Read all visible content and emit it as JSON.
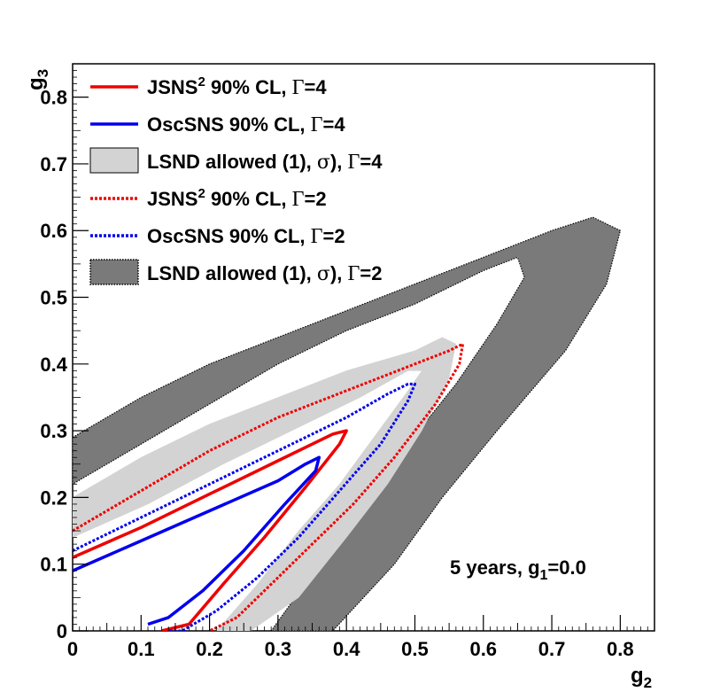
{
  "chart_data": {
    "type": "line",
    "title": "",
    "xlabel": "g",
    "xlabel_sub": "2",
    "ylabel": "g",
    "ylabel_sub": "3",
    "xlim": [
      0,
      0.85
    ],
    "ylim": [
      0,
      0.85
    ],
    "x_ticks": [
      {
        "v": 0,
        "label": "0"
      },
      {
        "v": 0.1,
        "label": "0.1"
      },
      {
        "v": 0.2,
        "label": "0.2"
      },
      {
        "v": 0.3,
        "label": "0.3"
      },
      {
        "v": 0.4,
        "label": "0.4"
      },
      {
        "v": 0.5,
        "label": "0.5"
      },
      {
        "v": 0.6,
        "label": "0.6"
      },
      {
        "v": 0.7,
        "label": "0.7"
      },
      {
        "v": 0.8,
        "label": "0.8"
      }
    ],
    "y_ticks": [
      {
        "v": 0,
        "label": "0"
      },
      {
        "v": 0.1,
        "label": "0.1"
      },
      {
        "v": 0.2,
        "label": "0.2"
      },
      {
        "v": 0.3,
        "label": "0.3"
      },
      {
        "v": 0.4,
        "label": "0.4"
      },
      {
        "v": 0.5,
        "label": "0.5"
      },
      {
        "v": 0.6,
        "label": "0.6"
      },
      {
        "v": 0.7,
        "label": "0.7"
      },
      {
        "v": 0.8,
        "label": "0.8"
      }
    ],
    "legend_position": "top-left",
    "annotation": {
      "text": "5 years, g",
      "sub": "1",
      "suffix": "=0.0"
    },
    "series": [
      {
        "id": "lsnd2",
        "name": "LSND allowed (1σ), Γ=2",
        "kind": "band",
        "color": "#7a7a7a",
        "style": "dotted-edge",
        "legend": {
          "pre": "LSND allowed (1",
          "greek": "σ",
          "post": "), ",
          "greek2": "Γ",
          "tail": "=2",
          "sup": ""
        },
        "outer": [
          [
            0,
            0.29
          ],
          [
            0.1,
            0.35
          ],
          [
            0.2,
            0.4
          ],
          [
            0.3,
            0.44
          ],
          [
            0.4,
            0.48
          ],
          [
            0.5,
            0.52
          ],
          [
            0.6,
            0.56
          ],
          [
            0.7,
            0.6
          ],
          [
            0.76,
            0.62
          ],
          [
            0.8,
            0.6
          ],
          [
            0.78,
            0.52
          ],
          [
            0.72,
            0.42
          ],
          [
            0.62,
            0.3
          ],
          [
            0.54,
            0.2
          ],
          [
            0.47,
            0.1
          ],
          [
            0.38,
            0
          ]
        ],
        "inner": [
          [
            0.29,
            0
          ],
          [
            0.36,
            0.1
          ],
          [
            0.42,
            0.19
          ],
          [
            0.49,
            0.28
          ],
          [
            0.56,
            0.37
          ],
          [
            0.62,
            0.46
          ],
          [
            0.66,
            0.53
          ],
          [
            0.65,
            0.56
          ],
          [
            0.6,
            0.54
          ],
          [
            0.5,
            0.49
          ],
          [
            0.4,
            0.45
          ],
          [
            0.3,
            0.4
          ],
          [
            0.2,
            0.34
          ],
          [
            0.1,
            0.28
          ],
          [
            0,
            0.22
          ]
        ]
      },
      {
        "id": "lsnd4",
        "name": "LSND allowed (1σ), Γ=4",
        "kind": "band",
        "color": "#d3d3d3",
        "style": "solid-edge",
        "legend": {
          "pre": "LSND allowed (1",
          "greek": "σ",
          "post": "), ",
          "greek2": "Γ",
          "tail": "=4",
          "sup": ""
        },
        "outer": [
          [
            0,
            0.2
          ],
          [
            0.1,
            0.26
          ],
          [
            0.2,
            0.31
          ],
          [
            0.3,
            0.35
          ],
          [
            0.4,
            0.39
          ],
          [
            0.5,
            0.42
          ],
          [
            0.54,
            0.44
          ],
          [
            0.56,
            0.43
          ],
          [
            0.55,
            0.38
          ],
          [
            0.51,
            0.3
          ],
          [
            0.46,
            0.22
          ],
          [
            0.4,
            0.14
          ],
          [
            0.33,
            0.05
          ],
          [
            0.26,
            0
          ]
        ],
        "inner": [
          [
            0.21,
            0
          ],
          [
            0.27,
            0.07
          ],
          [
            0.33,
            0.15
          ],
          [
            0.39,
            0.22
          ],
          [
            0.44,
            0.29
          ],
          [
            0.49,
            0.36
          ],
          [
            0.51,
            0.39
          ],
          [
            0.49,
            0.39
          ],
          [
            0.42,
            0.35
          ],
          [
            0.32,
            0.3
          ],
          [
            0.22,
            0.25
          ],
          [
            0.11,
            0.19
          ],
          [
            0,
            0.14
          ]
        ]
      },
      {
        "id": "jsns4",
        "name": "JSNS² 90% CL, Γ=4",
        "kind": "line",
        "color": "#ee0000",
        "dash": "none",
        "legend": {
          "pre": "JSNS",
          "sup": "2",
          "post": " 90% CL, ",
          "greek": "",
          "greek2": "Γ",
          "tail": "=4"
        },
        "points": [
          [
            0,
            0.11
          ],
          [
            0.1,
            0.155
          ],
          [
            0.2,
            0.205
          ],
          [
            0.3,
            0.255
          ],
          [
            0.38,
            0.295
          ],
          [
            0.4,
            0.3
          ],
          [
            0.39,
            0.28
          ],
          [
            0.34,
            0.215
          ],
          [
            0.28,
            0.14
          ],
          [
            0.22,
            0.07
          ],
          [
            0.17,
            0.01
          ],
          [
            0.13,
            0
          ]
        ]
      },
      {
        "id": "osc4",
        "name": "OscSNS 90% CL, Γ=4",
        "kind": "line",
        "color": "#0000ee",
        "dash": "none",
        "legend": {
          "pre": "OscSNS 90% CL, ",
          "sup": "",
          "post": "",
          "greek": "",
          "greek2": "Γ",
          "tail": "=4"
        },
        "points": [
          [
            0,
            0.09
          ],
          [
            0.1,
            0.135
          ],
          [
            0.2,
            0.18
          ],
          [
            0.3,
            0.225
          ],
          [
            0.34,
            0.25
          ],
          [
            0.36,
            0.26
          ],
          [
            0.355,
            0.24
          ],
          [
            0.31,
            0.19
          ],
          [
            0.25,
            0.12
          ],
          [
            0.19,
            0.06
          ],
          [
            0.14,
            0.02
          ],
          [
            0.11,
            0.01
          ]
        ]
      },
      {
        "id": "jsns2",
        "name": "JSNS² 90% CL, Γ=2",
        "kind": "line",
        "color": "#ee0000",
        "dash": "3,2",
        "legend": {
          "pre": "JSNS",
          "sup": "2",
          "post": " 90% CL, ",
          "greek": "",
          "greek2": "Γ",
          "tail": "=2"
        },
        "points": [
          [
            0,
            0.15
          ],
          [
            0.1,
            0.21
          ],
          [
            0.2,
            0.27
          ],
          [
            0.3,
            0.32
          ],
          [
            0.4,
            0.36
          ],
          [
            0.5,
            0.4
          ],
          [
            0.55,
            0.42
          ],
          [
            0.57,
            0.43
          ],
          [
            0.565,
            0.4
          ],
          [
            0.53,
            0.34
          ],
          [
            0.47,
            0.26
          ],
          [
            0.41,
            0.19
          ],
          [
            0.35,
            0.13
          ],
          [
            0.29,
            0.07
          ],
          [
            0.24,
            0.02
          ],
          [
            0.2,
            0
          ]
        ]
      },
      {
        "id": "osc2",
        "name": "OscSNS 90% CL, Γ=2",
        "kind": "line",
        "color": "#0000ee",
        "dash": "3,2",
        "legend": {
          "pre": "OscSNS 90% CL, ",
          "sup": "",
          "post": "",
          "greek": "",
          "greek2": "Γ",
          "tail": "=2"
        },
        "points": [
          [
            0,
            0.12
          ],
          [
            0.1,
            0.17
          ],
          [
            0.2,
            0.22
          ],
          [
            0.3,
            0.27
          ],
          [
            0.4,
            0.32
          ],
          [
            0.46,
            0.355
          ],
          [
            0.49,
            0.37
          ],
          [
            0.5,
            0.37
          ],
          [
            0.49,
            0.345
          ],
          [
            0.45,
            0.28
          ],
          [
            0.39,
            0.21
          ],
          [
            0.33,
            0.14
          ],
          [
            0.27,
            0.08
          ],
          [
            0.21,
            0.03
          ],
          [
            0.16,
            0
          ],
          [
            0.14,
            0
          ]
        ]
      }
    ],
    "legend_order": [
      "jsns4",
      "osc4",
      "lsnd4",
      "jsns2",
      "osc2",
      "lsnd2"
    ]
  }
}
